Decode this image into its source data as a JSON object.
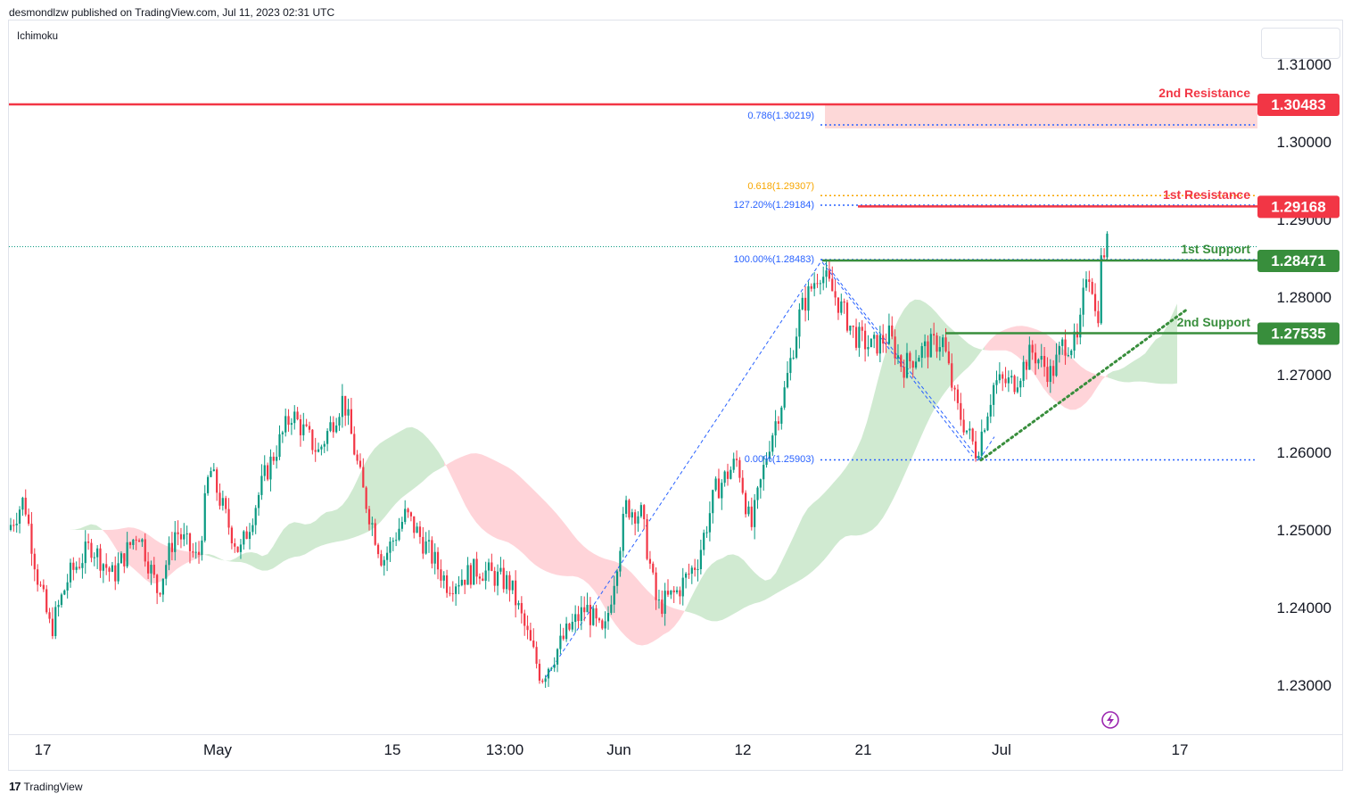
{
  "header": {
    "published": "desmondlzw published on TradingView.com, Jul 11, 2023 02:31 UTC"
  },
  "indicator": {
    "name": "Ichimoku"
  },
  "footer": {
    "brand": "TradingView"
  },
  "chart_data": {
    "type": "candlestick",
    "price_axis": {
      "range": [
        1.225,
        1.3145
      ],
      "ticks": [
        "1.31000",
        "1.30000",
        "1.29000",
        "1.28000",
        "1.27000",
        "1.26000",
        "1.25000",
        "1.24000",
        "1.23000"
      ]
    },
    "time_axis": {
      "labels": [
        "17",
        "May",
        "15",
        "13:00",
        "Jun",
        "12",
        "21",
        "Jul",
        "17"
      ]
    },
    "levels": [
      {
        "name": "2nd Resistance",
        "label": "1.30483",
        "value": 1.30483,
        "color": "#f23645"
      },
      {
        "name": "1st Resistance",
        "label": "1.29168",
        "value": 1.29168,
        "color": "#f23645"
      },
      {
        "name": "1st Support",
        "label": "1.28471",
        "value": 1.28471,
        "color": "#388e3c"
      },
      {
        "name": "2nd Support",
        "label": "1.27535",
        "value": 1.27535,
        "color": "#388e3c"
      }
    ],
    "fib_labels": [
      {
        "text": "0.786(1.30219)",
        "value": 1.30219,
        "color": "#2962ff"
      },
      {
        "text": "0.618(1.29307)",
        "value": 1.29307,
        "color": "#f7a600"
      },
      {
        "text": "127.20%(1.29184)",
        "value": 1.29184,
        "color": "#2962ff"
      },
      {
        "text": "100.00%(1.28483)",
        "value": 1.28483,
        "color": "#2962ff"
      },
      {
        "text": "0.00%(1.25903)",
        "value": 1.25903,
        "color": "#2962ff"
      }
    ],
    "colors": {
      "up": "#089981",
      "down": "#f23645",
      "cloud_bull": "#c8e6c9",
      "cloud_bear": "#ffcdd2",
      "resistance_zone": "#fdd8d8",
      "support": "#388e3c",
      "resistance": "#f23645",
      "fib": "#2962ff",
      "fib_618": "#f7a600"
    }
  }
}
